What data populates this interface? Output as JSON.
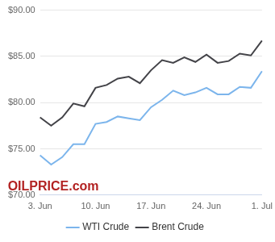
{
  "chart_data": {
    "type": "line",
    "categories": [
      "3. Jun",
      null,
      null,
      null,
      null,
      "10. Jun",
      null,
      null,
      null,
      null,
      "17. Jun",
      null,
      null,
      null,
      null,
      "24. Jun",
      null,
      null,
      null,
      null,
      "1. Jul"
    ],
    "series": [
      {
        "name": "WTI Crude",
        "color": "#7cb5ec",
        "values": [
          74.3,
          73.3,
          74.1,
          75.5,
          75.5,
          77.7,
          77.9,
          78.5,
          78.3,
          78.1,
          79.5,
          80.3,
          81.3,
          80.8,
          81.1,
          81.6,
          80.9,
          80.9,
          81.7,
          81.6,
          83.4
        ]
      },
      {
        "name": "Brent Crude",
        "color": "#434348",
        "values": [
          78.4,
          77.5,
          78.4,
          79.9,
          79.6,
          81.6,
          81.9,
          82.6,
          82.8,
          82.1,
          83.5,
          84.6,
          84.3,
          84.9,
          84.4,
          85.2,
          84.3,
          84.5,
          85.3,
          85.1,
          86.7
        ]
      }
    ],
    "ylim": [
      70,
      90
    ],
    "yticks": [
      {
        "value": 70,
        "label": "$70.00"
      },
      {
        "value": 75,
        "label": "$75.00"
      },
      {
        "value": 80,
        "label": "$80.00"
      },
      {
        "value": 85,
        "label": "$85.00"
      },
      {
        "value": 90,
        "label": "$90.00"
      }
    ],
    "grid": true,
    "legend": "bottom",
    "annotations": [
      "OILPRICE.com"
    ]
  }
}
